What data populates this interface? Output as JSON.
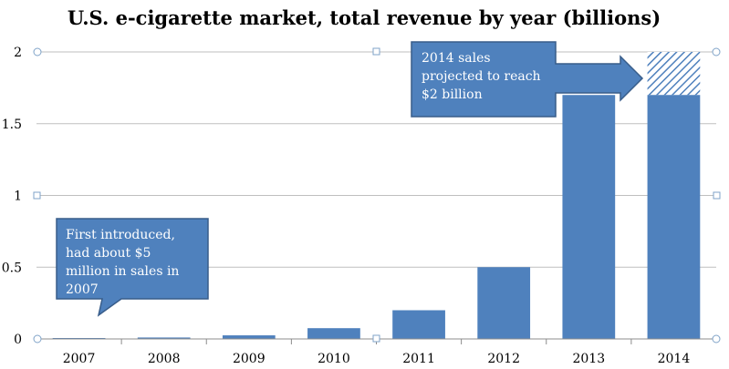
{
  "chart_data": {
    "type": "bar",
    "title": "U.S. e-cigarette market, total revenue by year (billions)",
    "categories": [
      "2007",
      "2008",
      "2009",
      "2010",
      "2011",
      "2012",
      "2013",
      "2014"
    ],
    "values": [
      0.005,
      0.01,
      0.025,
      0.075,
      0.2,
      0.5,
      1.7,
      1.7
    ],
    "projected": [
      0,
      0,
      0,
      0,
      0,
      0,
      0,
      2.0
    ],
    "ylim": [
      0,
      2
    ],
    "yticks": [
      0,
      0.5,
      1,
      1.5,
      2
    ],
    "ytick_labels": [
      "0",
      "0.5",
      "1",
      "1.5",
      "2"
    ],
    "grid": true,
    "colors": {
      "bar": "#4f81bd",
      "callout": "#4f81bd",
      "callout_border": "#385d8a",
      "hatch": "#4f81bd"
    },
    "annotations": [
      {
        "name": "first-introduced",
        "lines": [
          "First introduced,",
          "had about $5",
          "million in sales in",
          "2007"
        ],
        "target": "2007"
      },
      {
        "name": "projection-2014",
        "lines": [
          "2014 sales",
          "projected to reach",
          "$2 billion"
        ],
        "target": "2014"
      }
    ]
  }
}
